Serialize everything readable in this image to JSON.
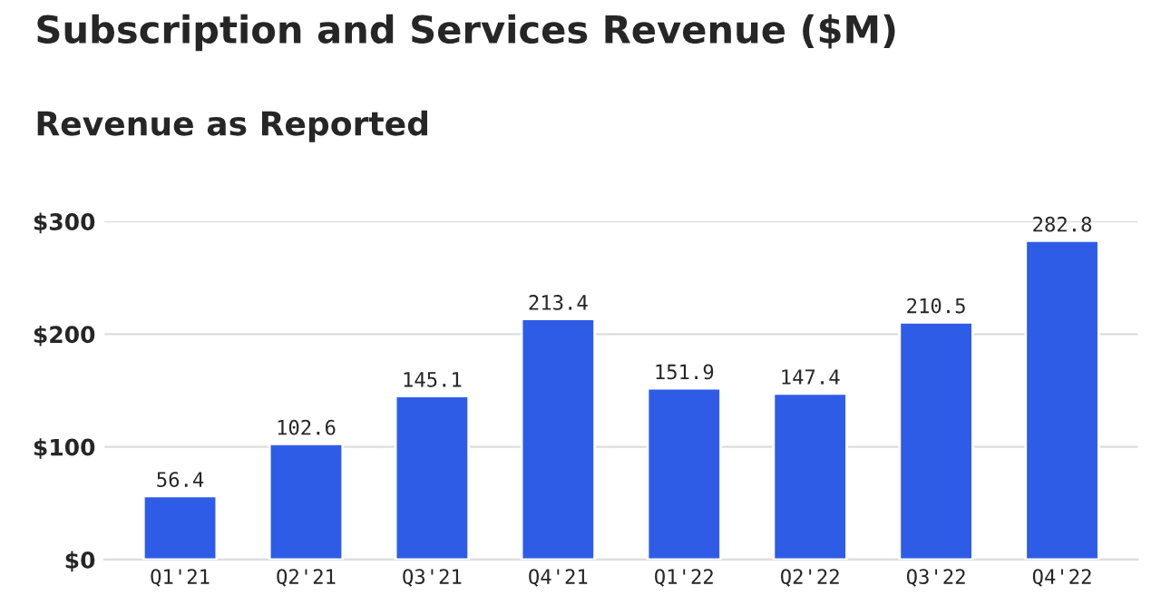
{
  "chart_data": {
    "type": "bar",
    "title": "Subscription and Services Revenue ($M)",
    "subtitle": "Revenue as Reported",
    "categories": [
      "Q1'21",
      "Q2'21",
      "Q3'21",
      "Q4'21",
      "Q1'22",
      "Q2'22",
      "Q3'22",
      "Q4'22"
    ],
    "values": [
      56.4,
      102.6,
      145.1,
      213.4,
      151.9,
      147.4,
      210.5,
      282.8
    ],
    "color": "#2f5ce6",
    "data_labels": true,
    "ylim": [
      0,
      300
    ],
    "yticks": [
      {
        "value": 0,
        "label": "$0"
      },
      {
        "value": 100,
        "label": "$100"
      },
      {
        "value": 200,
        "label": "$200"
      },
      {
        "value": 300,
        "label": "$300"
      }
    ],
    "grid": "y",
    "legend": false
  }
}
